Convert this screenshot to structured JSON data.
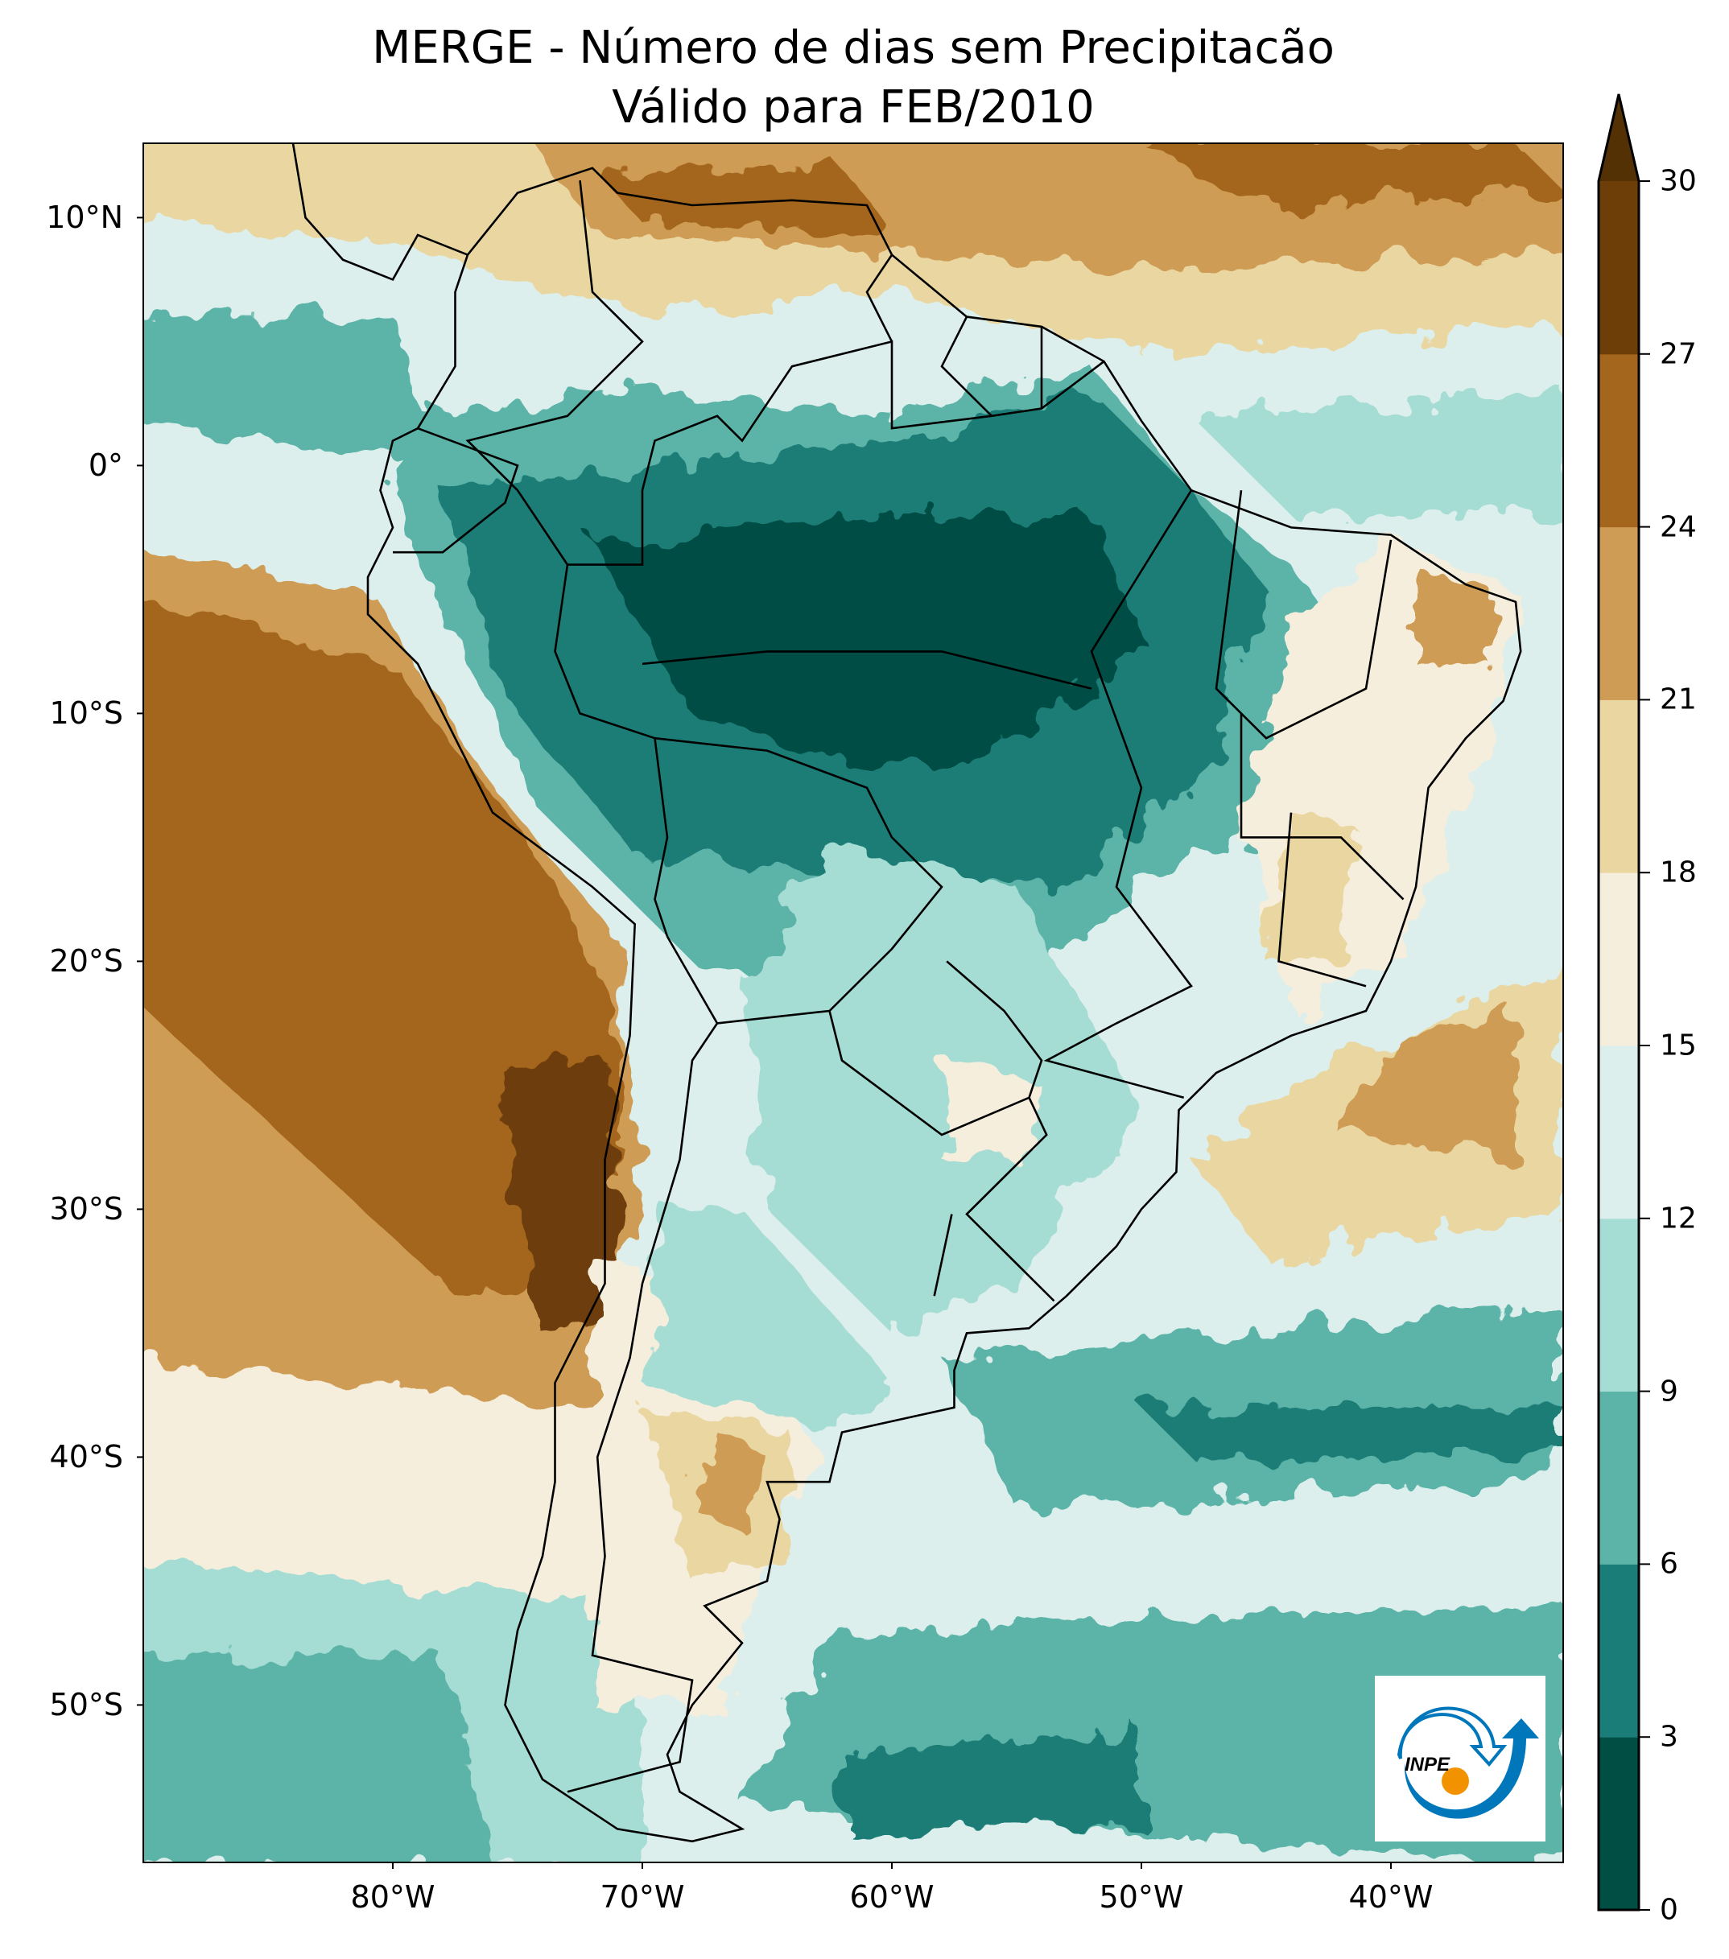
{
  "title": {
    "line1": "MERGE - Número de dias sem Precipitacão",
    "line2": "Válido para FEB/2010"
  },
  "axes": {
    "lat_labels": [
      "10°N",
      "0°",
      "10°S",
      "20°S",
      "30°S",
      "40°S",
      "50°S"
    ],
    "lat_values": [
      10,
      0,
      -10,
      -20,
      -30,
      -40,
      -50
    ],
    "lon_labels": [
      "80°W",
      "70°W",
      "60°W",
      "50°W",
      "40°W"
    ],
    "lon_values": [
      -80,
      -70,
      -60,
      -50,
      -40
    ]
  },
  "colorbar": {
    "tick_labels": [
      "0",
      "3",
      "6",
      "9",
      "12",
      "15",
      "18",
      "21",
      "24",
      "27",
      "30"
    ],
    "levels": [
      0,
      3,
      6,
      9,
      12,
      15,
      18,
      21,
      24,
      27,
      30
    ],
    "colors": [
      "#014e45",
      "#1b7d77",
      "#5cb3a8",
      "#a5dcd3",
      "#dcefec",
      "#f5eedd",
      "#ead6a0",
      "#cf9c55",
      "#a4661d",
      "#6d3e08"
    ],
    "extend_color": "#543005"
  },
  "logo": {
    "text": "INPE",
    "blue": "#0077bb",
    "orange": "#f39200"
  },
  "chart_data": {
    "type": "heatmap",
    "title": "MERGE - Número de dias sem Precipitacão / Válido para FEB/2010",
    "variable": "Número de dias sem precipitação",
    "lon_range": [
      -90,
      -33
    ],
    "lat_range": [
      -56,
      13
    ],
    "colorbar_range": [
      0,
      30
    ],
    "extend": "max"
  }
}
